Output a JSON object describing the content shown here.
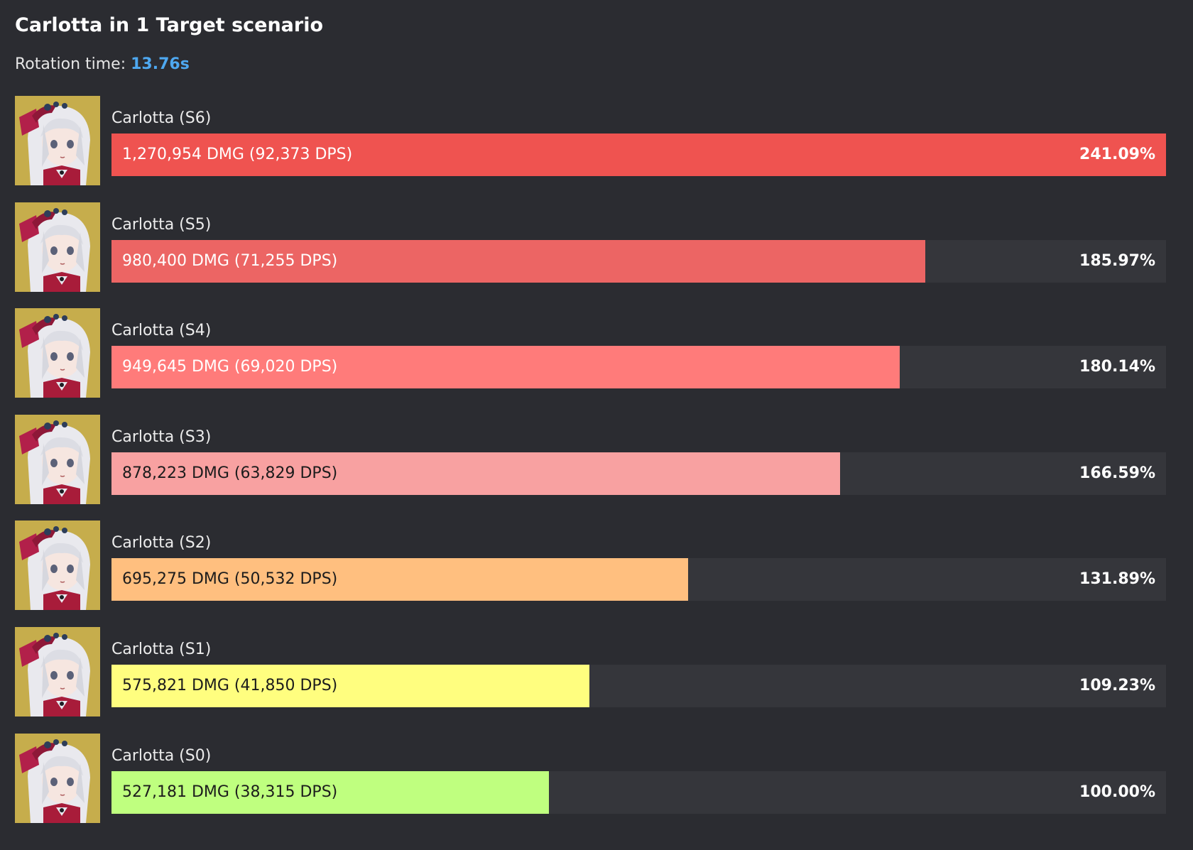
{
  "header": {
    "title": "Carlotta in 1 Target scenario",
    "rotation_label": "Rotation time:",
    "rotation_value": "13.76s",
    "rotation_color": "#4ea8f0"
  },
  "chart_data": {
    "type": "bar",
    "orientation": "horizontal",
    "title": "Carlotta in 1 Target scenario",
    "categories": [
      "Carlotta (S6)",
      "Carlotta (S5)",
      "Carlotta (S4)",
      "Carlotta (S3)",
      "Carlotta (S2)",
      "Carlotta (S1)",
      "Carlotta (S0)"
    ],
    "values": [
      241.09,
      185.97,
      180.14,
      166.59,
      131.89,
      109.23,
      100.0
    ],
    "xlim": [
      0,
      241.09
    ],
    "bars": [
      {
        "label": "Carlotta (S6)",
        "dmg": 1270954,
        "dps": 92373,
        "text": "1,270,954 DMG (92,373 DPS)",
        "percent": 241.09,
        "percent_label": "241.09%",
        "color": "#ef5350",
        "dark_text": false,
        "avatar_icon": "carlotta-portrait-icon"
      },
      {
        "label": "Carlotta (S5)",
        "dmg": 980400,
        "dps": 71255,
        "text": "980,400 DMG (71,255 DPS)",
        "percent": 185.97,
        "percent_label": "185.97%",
        "color": "#ec6564",
        "dark_text": false,
        "avatar_icon": "carlotta-portrait-icon"
      },
      {
        "label": "Carlotta (S4)",
        "dmg": 949645,
        "dps": 69020,
        "text": "949,645 DMG (69,020 DPS)",
        "percent": 180.14,
        "percent_label": "180.14%",
        "color": "#ff7b7a",
        "dark_text": false,
        "avatar_icon": "carlotta-portrait-icon"
      },
      {
        "label": "Carlotta (S3)",
        "dmg": 878223,
        "dps": 63829,
        "text": "878,223 DMG (63,829 DPS)",
        "percent": 166.59,
        "percent_label": "166.59%",
        "color": "#f8a1a1",
        "dark_text": true,
        "avatar_icon": "carlotta-portrait-icon"
      },
      {
        "label": "Carlotta (S2)",
        "dmg": 695275,
        "dps": 50532,
        "text": "695,275 DMG (50,532 DPS)",
        "percent": 131.89,
        "percent_label": "131.89%",
        "color": "#ffbf7f",
        "dark_text": true,
        "avatar_icon": "carlotta-portrait-icon"
      },
      {
        "label": "Carlotta (S1)",
        "dmg": 575821,
        "dps": 41850,
        "text": "575,821 DMG (41,850 DPS)",
        "percent": 109.23,
        "percent_label": "109.23%",
        "color": "#fffe7f",
        "dark_text": true,
        "avatar_icon": "carlotta-portrait-icon"
      },
      {
        "label": "Carlotta (S0)",
        "dmg": 527181,
        "dps": 38315,
        "text": "527,181 DMG (38,315 DPS)",
        "percent": 100.0,
        "percent_label": "100.00%",
        "color": "#bfff7f",
        "dark_text": true,
        "avatar_icon": "carlotta-portrait-icon"
      }
    ]
  }
}
